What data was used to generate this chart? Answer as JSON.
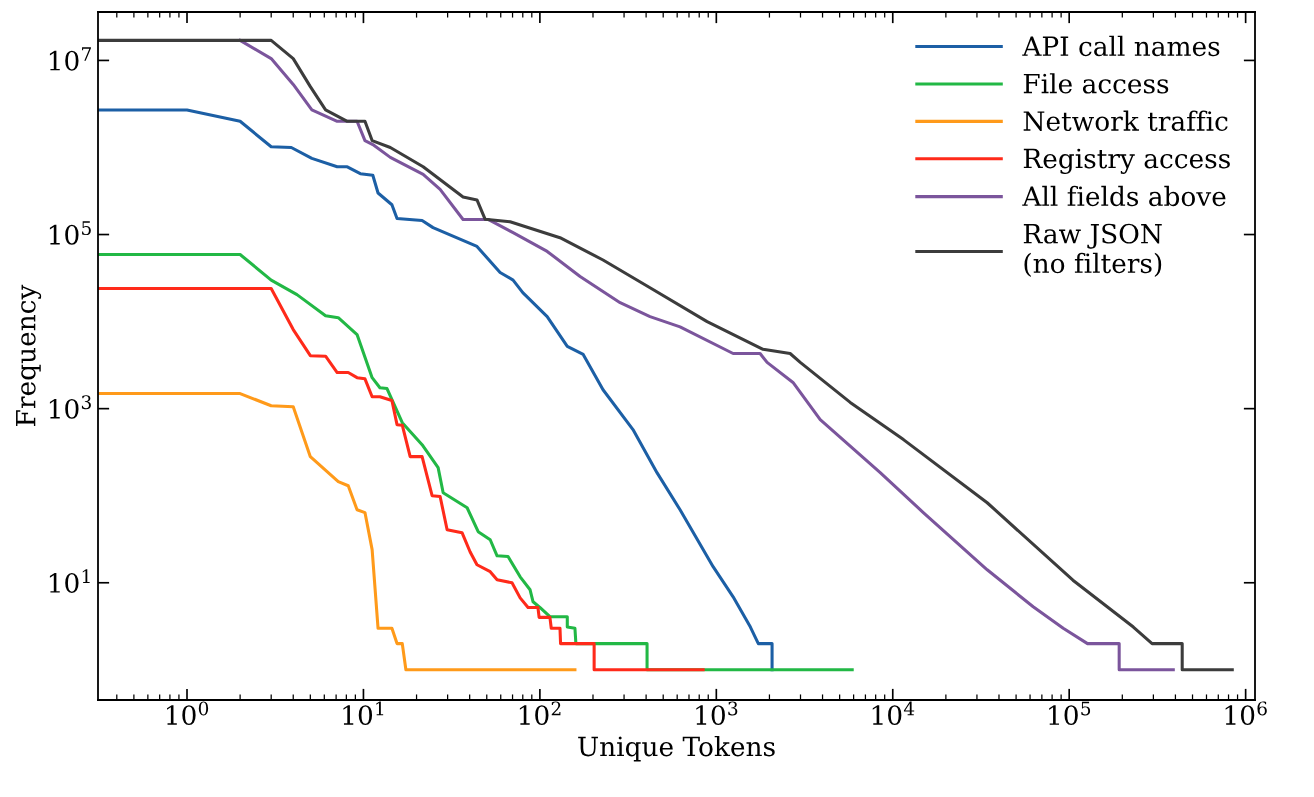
{
  "chart_data": {
    "type": "line",
    "xlabel": "Unique Tokens",
    "ylabel": "Frequency",
    "log": "xy",
    "grid": false,
    "legend": "top right",
    "line_style": "solid",
    "xlim": [
      0.313,
      1130000
    ],
    "ylim": [
      0.45,
      36000000
    ],
    "xticks": [
      {
        "value": 1,
        "label": "10$^{0}$"
      },
      {
        "value": 10,
        "label": "10$^{1}$"
      },
      {
        "value": 100,
        "label": "10$^{2}$"
      },
      {
        "value": 1000,
        "label": "10$^{3}$"
      },
      {
        "value": 10000,
        "label": "10$^{4}$"
      },
      {
        "value": 100000,
        "label": "10$^{5}$"
      },
      {
        "value": 1000000,
        "label": "10$^{6}$"
      }
    ],
    "yticks": [
      {
        "value": 10,
        "label": "10$^{1}$"
      },
      {
        "value": 1000,
        "label": "10$^{3}$"
      },
      {
        "value": 100000,
        "label": "10$^{5}$"
      },
      {
        "value": 10000000,
        "label": "10$^{7}$"
      }
    ],
    "series": [
      {
        "name": "API call names",
        "color": "#1c5fa5",
        "x": [
          0.32,
          1.0,
          2.0,
          3.0,
          3.9,
          5.1,
          7.1,
          8.1,
          9.6,
          11.3,
          12.1,
          14.5,
          15.5,
          21.5,
          24.8,
          44,
          59.5,
          70.5,
          80,
          110,
          143,
          176,
          228,
          337,
          461,
          623,
          959,
          1245,
          1560,
          1730,
          2070,
          2070
        ],
        "values": [
          2700000,
          2700000,
          2000000,
          1020000,
          1000000,
          750000,
          600000,
          600000,
          500000,
          480000,
          300000,
          220000,
          153000,
          145000,
          120000,
          73000,
          36600,
          30000,
          21500,
          11400,
          5200,
          4200,
          1650,
          575,
          184,
          69,
          15.3,
          6.9,
          3.1,
          2,
          2,
          1
        ]
      },
      {
        "name": "File access",
        "color": "#22b845",
        "x": [
          0.32,
          2.0,
          3.0,
          4.2,
          6.1,
          7.2,
          9.2,
          11.2,
          12.4,
          13.6,
          16.6,
          21.5,
          26.5,
          28.3,
          38.7,
          44.7,
          52.3,
          57.2,
          66,
          77.3,
          88,
          91.5,
          100,
          114,
          143,
          143,
          158,
          160,
          405,
          405,
          5890
        ],
        "values": [
          59000,
          59000,
          30000,
          20400,
          11700,
          11100,
          7100,
          2270,
          1740,
          1700,
          690,
          385,
          210,
          108,
          72.7,
          38.6,
          31.2,
          20.4,
          20,
          11.7,
          8.3,
          6.05,
          5.2,
          4.07,
          4.07,
          3.1,
          3,
          2,
          2,
          1,
          1
        ]
      },
      {
        "name": "Network traffic",
        "color": "#ff9a1a",
        "x": [
          0.32,
          2.0,
          3.0,
          4.0,
          5.0,
          7.2,
          8.2,
          9.2,
          10.2,
          11.2,
          12.1,
          14.5,
          15.5,
          16.6,
          17.4,
          158
        ],
        "values": [
          1490,
          1490,
          1080,
          1050,
          281,
          145,
          130,
          69,
          64,
          24,
          3,
          3,
          2,
          2,
          1,
          1
        ]
      },
      {
        "name": "Registry access",
        "color": "#ff2a1a",
        "x": [
          0.32,
          3.0,
          4.0,
          5.0,
          6.1,
          7.1,
          8.2,
          9.2,
          10.2,
          11.2,
          12.4,
          14.5,
          15.5,
          16.6,
          18.4,
          21.5,
          24.5,
          27.2,
          29.8,
          36.2,
          40.2,
          44,
          52.3,
          57.2,
          69.5,
          77.3,
          85.7,
          97.5,
          99,
          114,
          116,
          130,
          131,
          203,
          203,
          842
        ],
        "values": [
          24000,
          24000,
          8100,
          4060,
          4000,
          2600,
          2600,
          2270,
          2200,
          1370,
          1370,
          1240,
          655,
          645,
          281,
          281,
          100,
          98,
          40.6,
          37.6,
          22.7,
          16.1,
          13.4,
          10.8,
          10,
          6.7,
          5.2,
          5.2,
          4,
          4,
          3,
          3,
          2,
          2,
          1,
          1
        ]
      },
      {
        "name": "All fields above",
        "color": "#7b559c",
        "x": [
          2.0,
          3.0,
          4.0,
          5.1,
          7.1,
          9.2,
          10.2,
          11.3,
          14.2,
          21.8,
          27.2,
          36.7,
          50.9,
          70.5,
          110,
          169,
          285,
          421,
          623,
          1245,
          1770,
          1940,
          2720,
          3880,
          8490,
          14900,
          34300,
          62500,
          92500,
          127000,
          192000,
          192000,
          389000
        ],
        "values": [
          17000000,
          10500000,
          5300000,
          2700000,
          2000000,
          2000000,
          1200000,
          1080000,
          770000,
          490000,
          330000,
          149000,
          149000,
          105000,
          64000,
          33000,
          16500,
          11400,
          8700,
          4300,
          4300,
          3400,
          2000,
          748,
          184,
          64,
          14.1,
          5.3,
          3,
          2,
          2,
          1,
          1
        ]
      },
      {
        "name": "Raw JSON\n(no filters)",
        "color": "#3c3c3c",
        "x": [
          0.32,
          3.0,
          4.0,
          5.0,
          6.1,
          8.1,
          10.2,
          11.2,
          14.2,
          21.8,
          36.7,
          44,
          48.9,
          67.8,
          130,
          228,
          421,
          887,
          1840,
          2620,
          2990,
          5740,
          11500,
          34300,
          105000,
          231000,
          295000,
          437000,
          437000,
          840000
        ],
        "values": [
          17000000,
          17000000,
          10500000,
          5000000,
          2700000,
          2000000,
          2000000,
          1200000,
          1000000,
          600000,
          270000,
          250000,
          150000,
          140000,
          92000,
          51000,
          24500,
          10000,
          4800,
          4300,
          3400,
          1180,
          441,
          83,
          10.7,
          3.1,
          2,
          2,
          1,
          1
        ]
      }
    ]
  }
}
